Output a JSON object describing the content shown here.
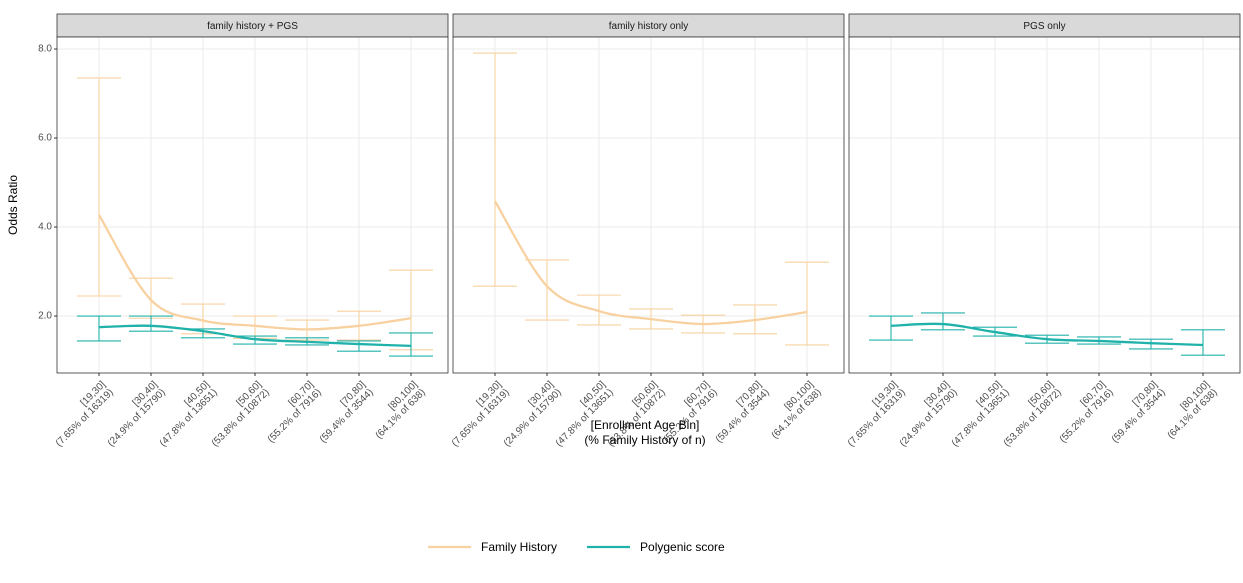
{
  "chart_data": [
    {
      "type": "errorbar",
      "title": "family history + PGS",
      "ylabel": "Odds Ratio",
      "ylim": [
        0.72,
        8.27
      ],
      "yticks": [
        {
          "value": 2,
          "label": "2.0"
        },
        {
          "value": 4,
          "label": "4.0"
        },
        {
          "value": 6,
          "label": "6.0"
        },
        {
          "value": 8,
          "label": "8.0"
        }
      ],
      "grid": true,
      "categories": [
        "[19,30]",
        "[30,40]",
        "[40,50]",
        "[50,60]",
        "[60,70]",
        "[70,80]",
        "[80,100]"
      ],
      "category_counts": [
        "(7.65% of 16319)",
        "(24.9% of 15790)",
        "(47.8% of 13651)",
        "(53.8% of 10872)",
        "(55.2% of 7916)",
        "(59.4% of 3544)",
        "(64.1% of 638)"
      ],
      "series": [
        {
          "name": "Family History",
          "color": "#f8d1a0",
          "values": [
            4.27,
            2.36,
            1.9,
            1.78,
            1.7,
            1.78,
            1.95
          ],
          "lower": [
            2.45,
            1.95,
            1.6,
            1.5,
            1.46,
            1.46,
            1.24
          ],
          "upper": [
            7.35,
            2.85,
            2.27,
            2.0,
            1.91,
            2.11,
            3.03
          ]
        },
        {
          "name": "Polygenic score",
          "color": "#20b2aa",
          "values": [
            1.75,
            1.78,
            1.66,
            1.48,
            1.42,
            1.37,
            1.33
          ],
          "lower": [
            1.44,
            1.66,
            1.51,
            1.37,
            1.35,
            1.21,
            1.1
          ],
          "upper": [
            2.0,
            2.0,
            1.71,
            1.55,
            1.51,
            1.44,
            1.62
          ]
        }
      ]
    },
    {
      "type": "errorbar",
      "title": "family history only",
      "xlabel": [
        "[Enrollment Age Bin]",
        "(% Family History of n)"
      ],
      "categories": [
        "[19,30]",
        "[30,40]",
        "[40,50]",
        "[50,60]",
        "[60,70]",
        "[70,80]",
        "[80,100]"
      ],
      "category_counts": [
        "(7.65% of 16319)",
        "(24.9% of 15790)",
        "(47.8% of 13651)",
        "(53.8% of 10872)",
        "(55.2% of 7916)",
        "(59.4% of 3544)",
        "(64.1% of 638)"
      ],
      "series": [
        {
          "name": "Family History",
          "color": "#f8d1a0",
          "values": [
            4.58,
            2.67,
            2.11,
            1.93,
            1.82,
            1.91,
            2.09
          ],
          "lower": [
            2.67,
            1.91,
            1.8,
            1.71,
            1.62,
            1.6,
            1.35
          ],
          "upper": [
            7.91,
            3.26,
            2.47,
            2.16,
            2.02,
            2.25,
            3.21
          ]
        }
      ]
    },
    {
      "type": "errorbar",
      "title": "PGS only",
      "categories": [
        "[19,30]",
        "[30,40]",
        "[40,50]",
        "[50,60]",
        "[60,70]",
        "[70,80]",
        "[80,100]"
      ],
      "category_counts": [
        "(7.65% of 16319)",
        "(24.9% of 15790)",
        "(47.8% of 13651)",
        "(53.8% of 10872)",
        "(55.2% of 7916)",
        "(59.4% of 3544)",
        "(64.1% of 638)"
      ],
      "series": [
        {
          "name": "Polygenic score",
          "color": "#20b2aa",
          "values": [
            1.78,
            1.82,
            1.64,
            1.48,
            1.44,
            1.39,
            1.35
          ],
          "lower": [
            1.46,
            1.69,
            1.55,
            1.39,
            1.37,
            1.26,
            1.12
          ],
          "upper": [
            2.0,
            2.07,
            1.75,
            1.57,
            1.53,
            1.48,
            1.69
          ]
        }
      ]
    }
  ]
}
